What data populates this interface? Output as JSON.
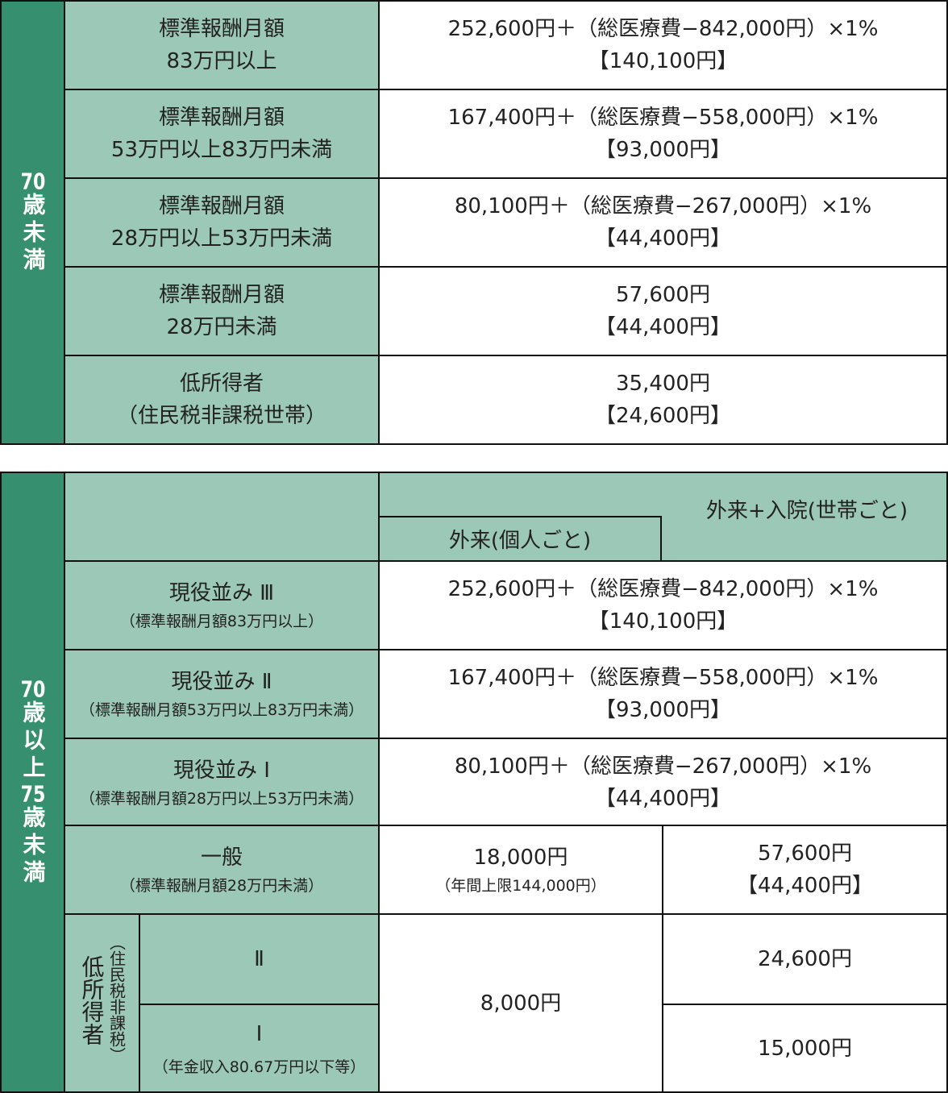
{
  "table1": {
    "group": [
      "70",
      "歳未満"
    ],
    "rows": [
      {
        "label": [
          "標準報酬月額",
          "83万円以上"
        ],
        "value": [
          "252,600円＋（総医療費−842,000円）×1%",
          "【140,100円】"
        ]
      },
      {
        "label": [
          "標準報酬月額",
          "53万円以上83万円未満"
        ],
        "value": [
          "167,400円＋（総医療費−558,000円）×1%",
          "【93,000円】"
        ]
      },
      {
        "label": [
          "標準報酬月額",
          "28万円以上53万円未満"
        ],
        "value": [
          "80,100円＋（総医療費−267,000円）×1%",
          "【44,400円】"
        ]
      },
      {
        "label": [
          "標準報酬月額",
          "28万円未満"
        ],
        "value": [
          "57,600円",
          "【44,400円】"
        ]
      },
      {
        "label": [
          "低所得者",
          "（住民税非課税世帯）"
        ],
        "value": [
          "35,400円",
          "【24,600円】"
        ]
      }
    ]
  },
  "table2": {
    "group": [
      "70",
      "歳以上",
      "75",
      "歳未満"
    ],
    "header": {
      "outpatient": "外来(個人ごと)",
      "household": "外来+入院(世帯ごと)"
    },
    "rows": [
      {
        "label": [
          "現役並み Ⅲ",
          "（標準報酬月額83万円以上）"
        ],
        "value": [
          "252,600円＋（総医療費−842,000円）×1%",
          "【140,100円】"
        ]
      },
      {
        "label": [
          "現役並み Ⅱ",
          "（標準報酬月額53万円以上83万円未満）"
        ],
        "value": [
          "167,400円＋（総医療費−558,000円）×1%",
          "【93,000円】"
        ]
      },
      {
        "label": [
          "現役並み Ⅰ",
          "（標準報酬月額28万円以上53万円未満）"
        ],
        "value": [
          "80,100円＋（総医療費−267,000円）×1%",
          "【44,400円】"
        ]
      }
    ],
    "general": {
      "label": [
        "一般",
        "（標準報酬月額28万円未満）"
      ],
      "outpatient": [
        "18,000円",
        "（年間上限144,000円）"
      ],
      "household": [
        "57,600円",
        "【44,400円】"
      ]
    },
    "low_income": {
      "label": "低所得者",
      "note": "（住民税非課税）",
      "II": {
        "label": "Ⅱ",
        "household": "24,600円"
      },
      "I": {
        "label": "Ⅰ",
        "sub": "（年金収入80.67万円以下等）",
        "household": "15,000円"
      },
      "outpatient": "8,000円"
    }
  }
}
